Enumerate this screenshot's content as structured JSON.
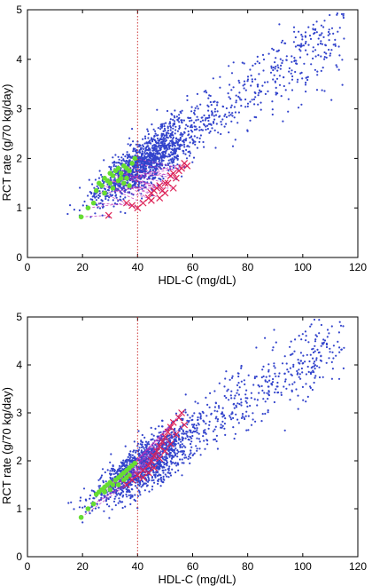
{
  "chart_data": [
    {
      "type": "scatter",
      "title": "",
      "xlabel": "HDL-C (mg/dL)",
      "ylabel": "RCT rate (g/70 kg/day)",
      "xlim": [
        0,
        120
      ],
      "ylim": [
        0,
        5
      ],
      "xticks": [
        0,
        20,
        40,
        60,
        80,
        100,
        120
      ],
      "yticks": [
        0,
        1,
        2,
        3,
        4,
        5
      ],
      "grid": false,
      "reference_line": {
        "x": 40,
        "color": "#cc3333",
        "style": "dotted"
      },
      "population": {
        "color": "#3344cc",
        "trend_intercept": 0.33,
        "trend_slope": 0.0375
      },
      "series": [
        {
          "color": "#66dd33",
          "marker": "circle",
          "points": [
            [
              19.5,
              0.82
            ],
            [
              22,
              1.0
            ],
            [
              24,
              1.1
            ],
            [
              25,
              1.35
            ],
            [
              26,
              1.5
            ],
            [
              27,
              1.45
            ],
            [
              28,
              1.6
            ],
            [
              29,
              1.55
            ],
            [
              30,
              1.7
            ],
            [
              31,
              1.65
            ],
            [
              32,
              1.75
            ],
            [
              33,
              1.8
            ],
            [
              34,
              1.7
            ],
            [
              35,
              1.85
            ],
            [
              36,
              1.6
            ],
            [
              37,
              1.75
            ],
            [
              38,
              1.9
            ],
            [
              39,
              2.0
            ],
            [
              30,
              1.5
            ],
            [
              33,
              1.55
            ],
            [
              35,
              1.5
            ],
            [
              37,
              1.45
            ],
            [
              28,
              1.3
            ],
            [
              31,
              1.4
            ],
            [
              34,
              1.6
            ],
            [
              36,
              1.8
            ]
          ]
        },
        {
          "color": "#dd2255",
          "marker": "x",
          "points": [
            [
              29.5,
              0.85
            ],
            [
              36,
              1.1
            ],
            [
              38,
              1.05
            ],
            [
              40,
              1.0
            ],
            [
              42,
              1.1
            ],
            [
              44,
              1.2
            ],
            [
              45,
              1.3
            ],
            [
              46,
              1.35
            ],
            [
              47,
              1.4
            ],
            [
              48,
              1.45
            ],
            [
              49,
              1.35
            ],
            [
              50,
              1.3
            ],
            [
              51,
              1.5
            ],
            [
              52,
              1.65
            ],
            [
              53,
              1.7
            ],
            [
              54,
              1.6
            ],
            [
              55,
              1.75
            ],
            [
              56,
              1.8
            ],
            [
              57,
              1.9
            ],
            [
              58,
              1.85
            ],
            [
              45,
              1.15
            ],
            [
              48,
              1.2
            ],
            [
              50,
              1.5
            ],
            [
              53,
              1.4
            ]
          ]
        }
      ]
    },
    {
      "type": "scatter",
      "title": "",
      "xlabel": "HDL-C (mg/dL)",
      "ylabel": "RCT rate (g/70 kg/day)",
      "xlim": [
        0,
        120
      ],
      "ylim": [
        0,
        5
      ],
      "xticks": [
        0,
        20,
        40,
        60,
        80,
        100,
        120
      ],
      "yticks": [
        0,
        1,
        2,
        3,
        4,
        5
      ],
      "grid": false,
      "reference_line": {
        "x": 40,
        "color": "#cc3333",
        "style": "dotted"
      },
      "population": {
        "color": "#3344cc",
        "trend_intercept": 0.33,
        "trend_slope": 0.0375
      },
      "series": [
        {
          "color": "#66dd33",
          "marker": "circle",
          "points": [
            [
              19.5,
              0.82
            ],
            [
              22,
              1.0
            ],
            [
              24,
              1.1
            ],
            [
              25,
              1.3
            ],
            [
              26,
              1.35
            ],
            [
              27,
              1.4
            ],
            [
              28,
              1.45
            ],
            [
              29,
              1.5
            ],
            [
              30,
              1.55
            ],
            [
              31,
              1.5
            ],
            [
              32,
              1.6
            ],
            [
              33,
              1.65
            ],
            [
              34,
              1.7
            ],
            [
              35,
              1.75
            ],
            [
              36,
              1.8
            ],
            [
              37,
              1.85
            ],
            [
              38,
              1.9
            ],
            [
              39,
              1.95
            ],
            [
              30,
              1.4
            ],
            [
              33,
              1.5
            ],
            [
              35,
              1.6
            ],
            [
              37,
              1.7
            ],
            [
              28,
              1.35
            ],
            [
              36,
              1.65
            ]
          ]
        },
        {
          "color": "#dd2255",
          "marker": "x",
          "points": [
            [
              36,
              1.5
            ],
            [
              38,
              1.6
            ],
            [
              40,
              1.7
            ],
            [
              42,
              1.8
            ],
            [
              44,
              1.9
            ],
            [
              45,
              2.0
            ],
            [
              46,
              2.1
            ],
            [
              47,
              2.2
            ],
            [
              48,
              2.3
            ],
            [
              49,
              2.4
            ],
            [
              50,
              2.5
            ],
            [
              51,
              2.6
            ],
            [
              52,
              2.7
            ],
            [
              53,
              2.8
            ],
            [
              55,
              2.9
            ],
            [
              56,
              3.0
            ],
            [
              44,
              1.75
            ],
            [
              46,
              1.85
            ],
            [
              48,
              2.05
            ],
            [
              50,
              2.2
            ],
            [
              52,
              2.35
            ],
            [
              54,
              2.55
            ],
            [
              57,
              2.75
            ],
            [
              42,
              1.65
            ]
          ]
        }
      ]
    }
  ]
}
